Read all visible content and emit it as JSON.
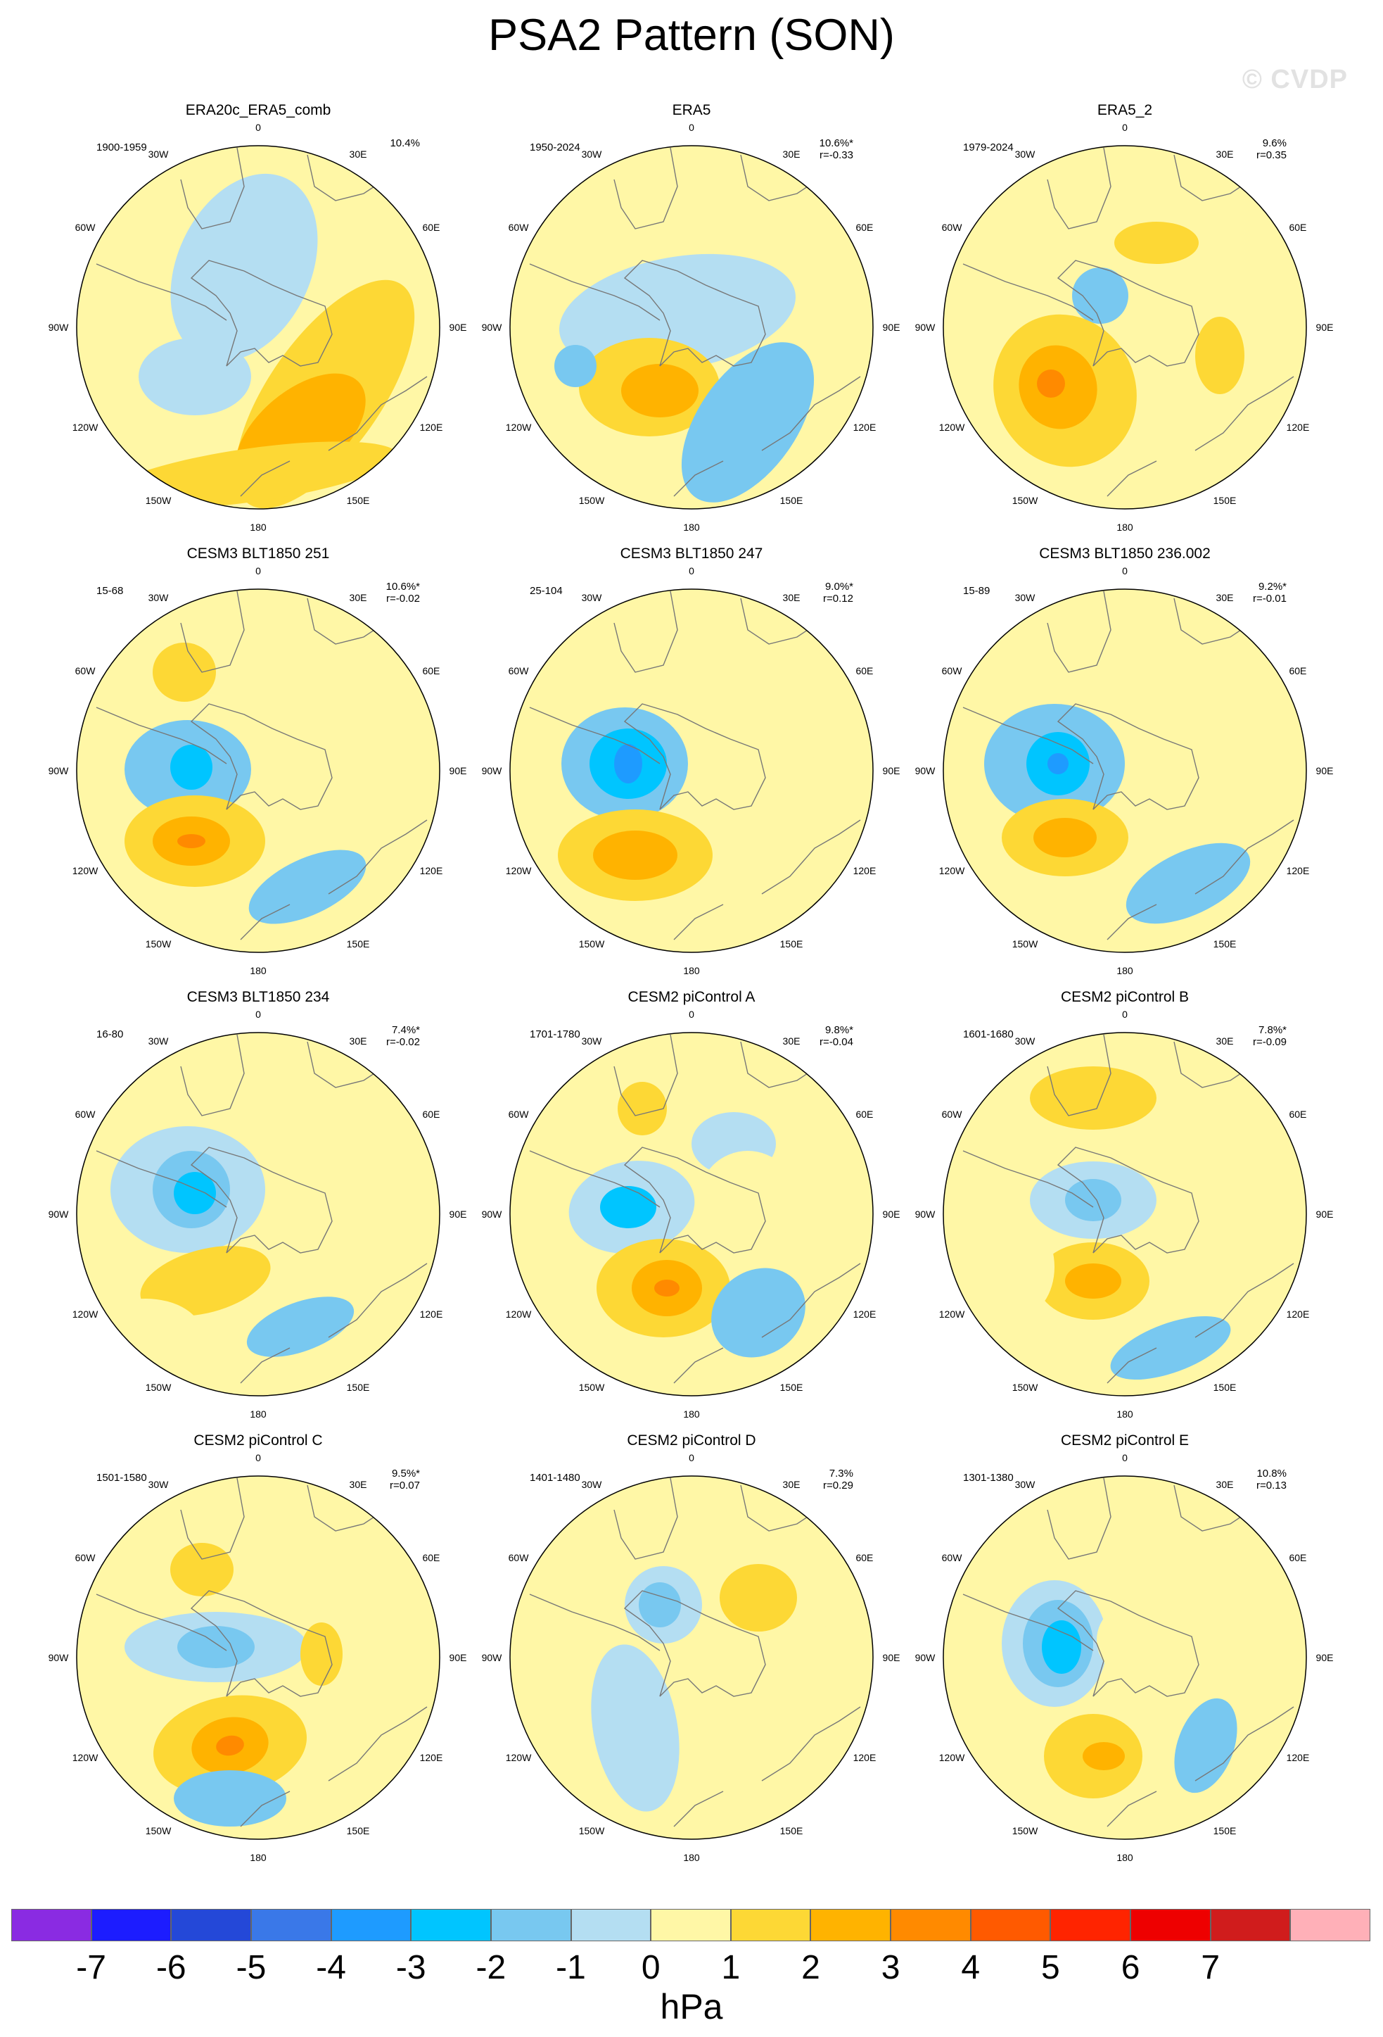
{
  "figure": {
    "title": "PSA2 Pattern (SON)",
    "watermark": "© CVDP",
    "units": "hPa"
  },
  "longitude_labels": [
    "0",
    "30E",
    "60E",
    "90E",
    "120E",
    "150E",
    "180",
    "150W",
    "120W",
    "90W",
    "60W",
    "30W"
  ],
  "panels": [
    {
      "title": "ERA20c_ERA5_comb",
      "period": "1900-1959",
      "variance": "10.4%",
      "r": ""
    },
    {
      "title": "ERA5",
      "period": "1950-2024",
      "variance": "10.6%*",
      "r": "r=-0.33"
    },
    {
      "title": "ERA5_2",
      "period": "1979-2024",
      "variance": "9.6%",
      "r": "r=0.35"
    },
    {
      "title": "CESM3 BLT1850 251",
      "period": "15-68",
      "variance": "10.6%*",
      "r": "r=-0.02"
    },
    {
      "title": "CESM3 BLT1850 247",
      "period": "25-104",
      "variance": "9.0%*",
      "r": "r=0.12"
    },
    {
      "title": "CESM3 BLT1850 236.002",
      "period": "15-89",
      "variance": "9.2%*",
      "r": "r=-0.01"
    },
    {
      "title": "CESM3 BLT1850 234",
      "period": "16-80",
      "variance": "7.4%*",
      "r": "r=-0.02"
    },
    {
      "title": "CESM2 piControl A",
      "period": "1701-1780",
      "variance": "9.8%*",
      "r": "r=-0.04"
    },
    {
      "title": "CESM2 piControl B",
      "period": "1601-1680",
      "variance": "7.8%*",
      "r": "r=-0.09"
    },
    {
      "title": "CESM2 piControl C",
      "period": "1501-1580",
      "variance": "9.5%*",
      "r": "r=0.07"
    },
    {
      "title": "CESM2 piControl D",
      "period": "1401-1480",
      "variance": "7.3%",
      "r": "r=0.29"
    },
    {
      "title": "CESM2 piControl E",
      "period": "1301-1380",
      "variance": "10.8%",
      "r": "r=0.13"
    }
  ],
  "colorbar": {
    "colors": [
      "#8a2be2",
      "#1c1cff",
      "#2448d8",
      "#3a78e8",
      "#1e9bff",
      "#00c5ff",
      "#78c8f0",
      "#b4def2",
      "#fff7a6",
      "#fdd835",
      "#ffb300",
      "#ff8a00",
      "#ff5a00",
      "#ff2400",
      "#ee0000",
      "#d01c1c",
      "#ffb0b8"
    ],
    "labels": [
      "-7",
      "-6",
      "-5",
      "-4",
      "-3",
      "-2",
      "-1",
      "0",
      "1",
      "2",
      "3",
      "4",
      "5",
      "6",
      "7"
    ]
  }
}
